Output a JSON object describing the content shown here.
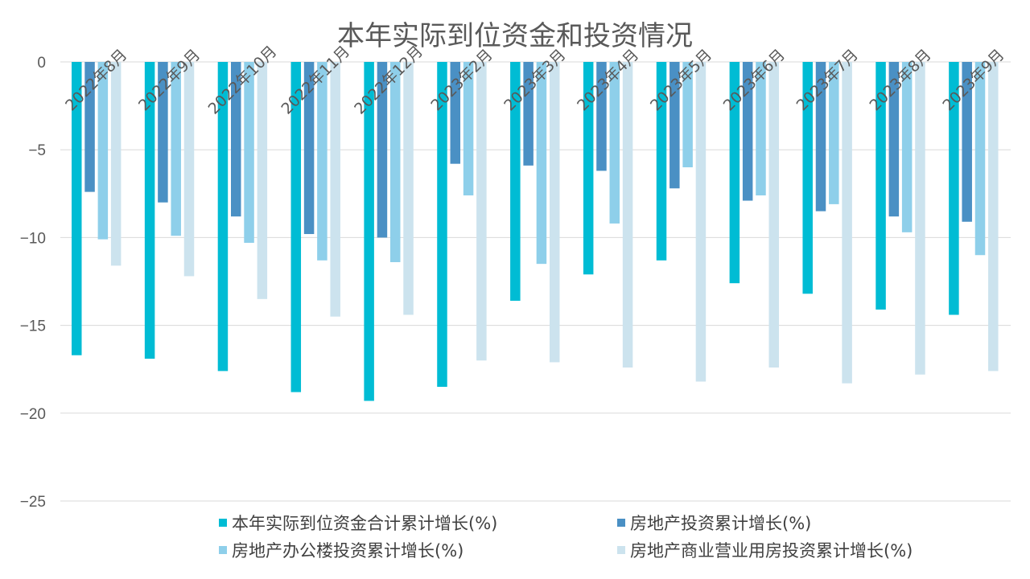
{
  "chart_data": {
    "type": "bar",
    "title": "本年实际到位资金和投资情况",
    "xlabel": "",
    "ylabel": "",
    "ylim": [
      -25,
      0
    ],
    "yticks": [
      0,
      -5,
      -10,
      -15,
      -20,
      -25
    ],
    "grid": true,
    "legend_position": "bottom",
    "categories": [
      "2022年8月",
      "2022年9月",
      "2022年10月",
      "2022年11月",
      "2022年12月",
      "2023年2月",
      "2023年3月",
      "2023年4月",
      "2023年5月",
      "2023年6月",
      "2023年7月",
      "2023年8月",
      "2023年9月"
    ],
    "series": [
      {
        "name": "本年实际到位资金合计累计增长(%)",
        "color": "#00BCD4",
        "values": [
          -16.7,
          -16.9,
          -17.6,
          -18.8,
          -19.3,
          -18.5,
          -13.6,
          -12.1,
          -11.3,
          -12.6,
          -13.2,
          -14.1,
          -14.4
        ]
      },
      {
        "name": "房地产投资累计增长(%)",
        "color": "#4A90C4",
        "values": [
          -7.4,
          -8.0,
          -8.8,
          -9.8,
          -10.0,
          -5.8,
          -5.9,
          -6.2,
          -7.2,
          -7.9,
          -8.5,
          -8.8,
          -9.1
        ]
      },
      {
        "name": "房地产办公楼投资累计增长(%)",
        "color": "#8ECFEA",
        "values": [
          -10.1,
          -9.9,
          -10.3,
          -11.3,
          -11.4,
          -7.6,
          -11.5,
          -9.2,
          -6.0,
          -7.6,
          -8.1,
          -9.7,
          -11.0
        ]
      },
      {
        "name": "房地产商业营业用房投资累计增长(%)",
        "color": "#CCE3EE",
        "values": [
          -11.6,
          -12.2,
          -13.5,
          -14.5,
          -14.4,
          -17.0,
          -17.1,
          -17.4,
          -18.2,
          -17.4,
          -18.3,
          -17.8,
          -17.6
        ]
      }
    ]
  }
}
